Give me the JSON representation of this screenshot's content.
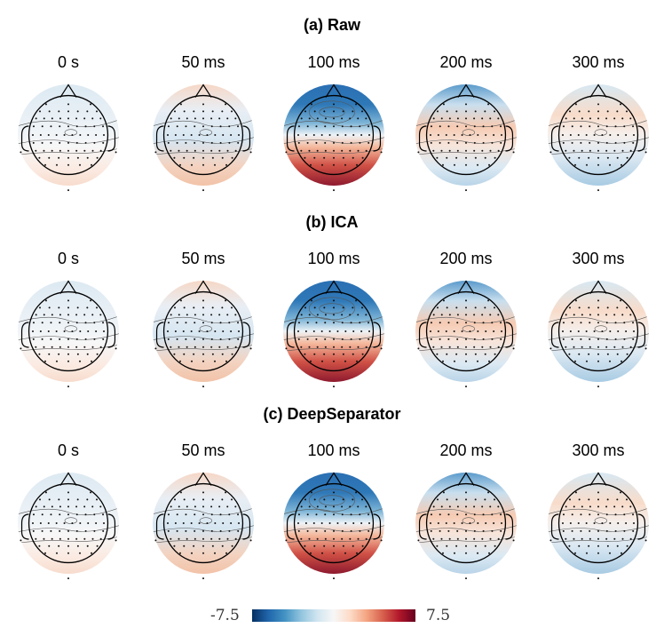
{
  "rows": [
    {
      "title": "(a) Raw",
      "maps": [
        {
          "time": "0 s",
          "pattern": "faint"
        },
        {
          "time": "50 ms",
          "pattern": "mid"
        },
        {
          "time": "100 ms",
          "pattern": "strong"
        },
        {
          "time": "200 ms",
          "pattern": "late"
        },
        {
          "time": "300 ms",
          "pattern": "late2"
        }
      ]
    },
    {
      "title": "(b) ICA",
      "maps": [
        {
          "time": "0 s",
          "pattern": "faint"
        },
        {
          "time": "50 ms",
          "pattern": "mid"
        },
        {
          "time": "100 ms",
          "pattern": "strong"
        },
        {
          "time": "200 ms",
          "pattern": "late"
        },
        {
          "time": "300 ms",
          "pattern": "late2"
        }
      ]
    },
    {
      "title": "(c) DeepSeparator",
      "maps": [
        {
          "time": "0 s",
          "pattern": "faint"
        },
        {
          "time": "50 ms",
          "pattern": "mid"
        },
        {
          "time": "100 ms",
          "pattern": "strong"
        },
        {
          "time": "200 ms",
          "pattern": "late"
        },
        {
          "time": "300 ms",
          "pattern": "late2"
        }
      ]
    }
  ],
  "colorbar": {
    "min_label": "-7.5",
    "max_label": "7.5",
    "min": -7.5,
    "max": 7.5,
    "colors": [
      "#053061",
      "#2166ac",
      "#4393c3",
      "#92c5de",
      "#d1e5f0",
      "#f7f7f7",
      "#fddbc7",
      "#f4a582",
      "#d6604d",
      "#b2182b",
      "#67001f"
    ]
  }
}
